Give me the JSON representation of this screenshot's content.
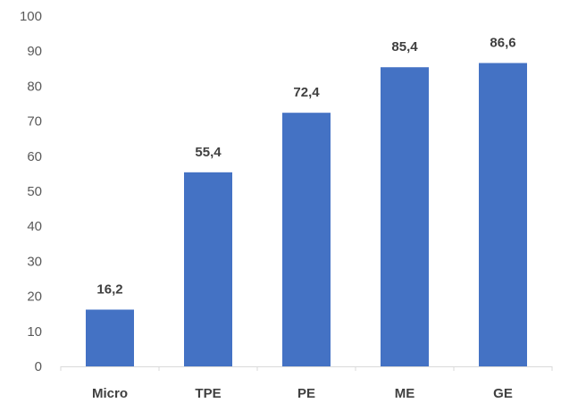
{
  "chart_data": {
    "type": "bar",
    "title": "",
    "xlabel": "",
    "ylabel": "",
    "categories": [
      "Micro",
      "TPE",
      "PE",
      "ME",
      "GE"
    ],
    "values": [
      16.2,
      55.4,
      72.4,
      85.4,
      86.6
    ],
    "data_labels": [
      "16,2",
      "55,4",
      "72,4",
      "85,4",
      "86,6"
    ],
    "ylim": [
      0,
      100
    ],
    "yticks": [
      0,
      10,
      20,
      30,
      40,
      50,
      60,
      70,
      80,
      90,
      100
    ],
    "grid": false,
    "legend": "none",
    "bar_color": "#4472C4"
  }
}
